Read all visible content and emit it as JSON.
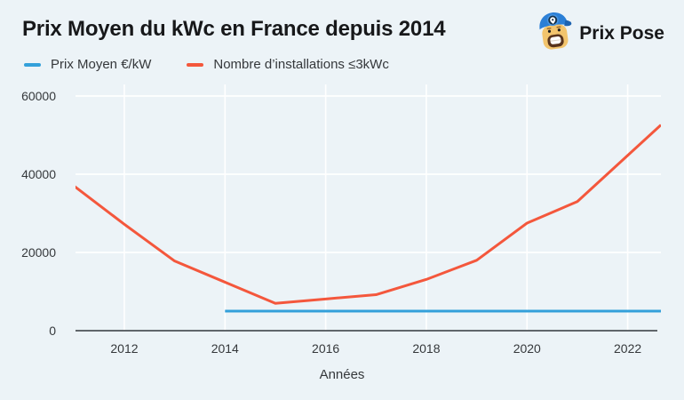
{
  "page": {
    "background": "#ecf3f7"
  },
  "header": {
    "title": "Prix Moyen du kWc en France depuis 2014",
    "brand": "Prix Pose"
  },
  "legend": [
    {
      "label": "Prix Moyen €/kW",
      "color": "#33a0da"
    },
    {
      "label": "Nombre d’installations ≤3kWc",
      "color": "#f4573c"
    }
  ],
  "chart_data": {
    "type": "line",
    "title": "Prix Moyen du kWc en France depuis 2014",
    "xlabel": "Années",
    "ylabel": "",
    "xlim": [
      2011.03,
      2022.66
    ],
    "ylim": [
      0,
      62950
    ],
    "x_ticks": [
      2012,
      2014,
      2016,
      2018,
      2020,
      2022
    ],
    "y_ticks": [
      0,
      20000,
      40000,
      60000
    ],
    "grid": true,
    "legend_position": "top-left",
    "colors": {
      "grid": "#ffffff",
      "axis": "#4d5257",
      "tick_text": "#35383b"
    },
    "series": [
      {
        "name": "Prix Moyen €/kW",
        "slug": "prix-moyen",
        "color": "#33a0da",
        "points": [
          [
            2014,
            5000
          ],
          [
            2022.66,
            5000
          ]
        ]
      },
      {
        "name": "Nombre d’installations ≤3kWc",
        "slug": "installations",
        "color": "#f4573c",
        "points": [
          [
            2011,
            37000
          ],
          [
            2012,
            27200
          ],
          [
            2013,
            17800
          ],
          [
            2014,
            12400
          ],
          [
            2015,
            7000
          ],
          [
            2016,
            8100
          ],
          [
            2017,
            9200
          ],
          [
            2018,
            13100
          ],
          [
            2019,
            18000
          ],
          [
            2020,
            27500
          ],
          [
            2021,
            33000
          ],
          [
            2022.66,
            52600
          ]
        ]
      }
    ]
  }
}
